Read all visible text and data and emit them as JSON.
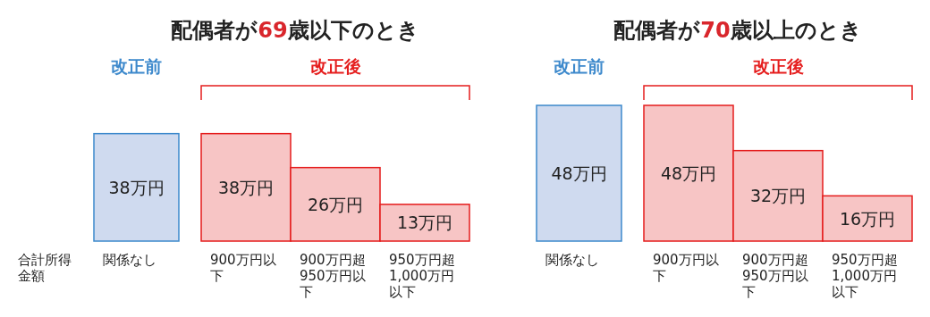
{
  "chart_data": [
    {
      "type": "bar",
      "title": "配偶者が69歳以下のとき",
      "categories": [
        "関係なし",
        "900万円以下",
        "900万円超950万円以下",
        "950万円超1,000万円以下"
      ],
      "series": [
        {
          "name": "改正前",
          "color": "#cfdaef",
          "values": [
            38,
            null,
            null,
            null
          ],
          "value_labels": [
            "38万円",
            null,
            null,
            null
          ]
        },
        {
          "name": "改正後",
          "color": "#f7c5c5",
          "values": [
            null,
            38,
            26,
            13
          ],
          "value_labels": [
            null,
            "38万円",
            "26万円",
            "13万円"
          ]
        }
      ],
      "annotations": [
        "合計所得金額"
      ]
    },
    {
      "type": "bar",
      "title": "配偶者が70歳以上のとき",
      "categories": [
        "関係なし",
        "900万円以下",
        "900万円超950万円以下",
        "950万円超1,000万円以下"
      ],
      "series": [
        {
          "name": "改正前",
          "color": "#cfdaef",
          "values": [
            48,
            null,
            null,
            null
          ],
          "value_labels": [
            "48万円",
            null,
            null,
            null
          ]
        },
        {
          "name": "改正後",
          "color": "#f7c5c5",
          "values": [
            null,
            48,
            32,
            16
          ],
          "value_labels": [
            null,
            "48万円",
            "32万円",
            "16万円"
          ]
        }
      ]
    }
  ]
}
